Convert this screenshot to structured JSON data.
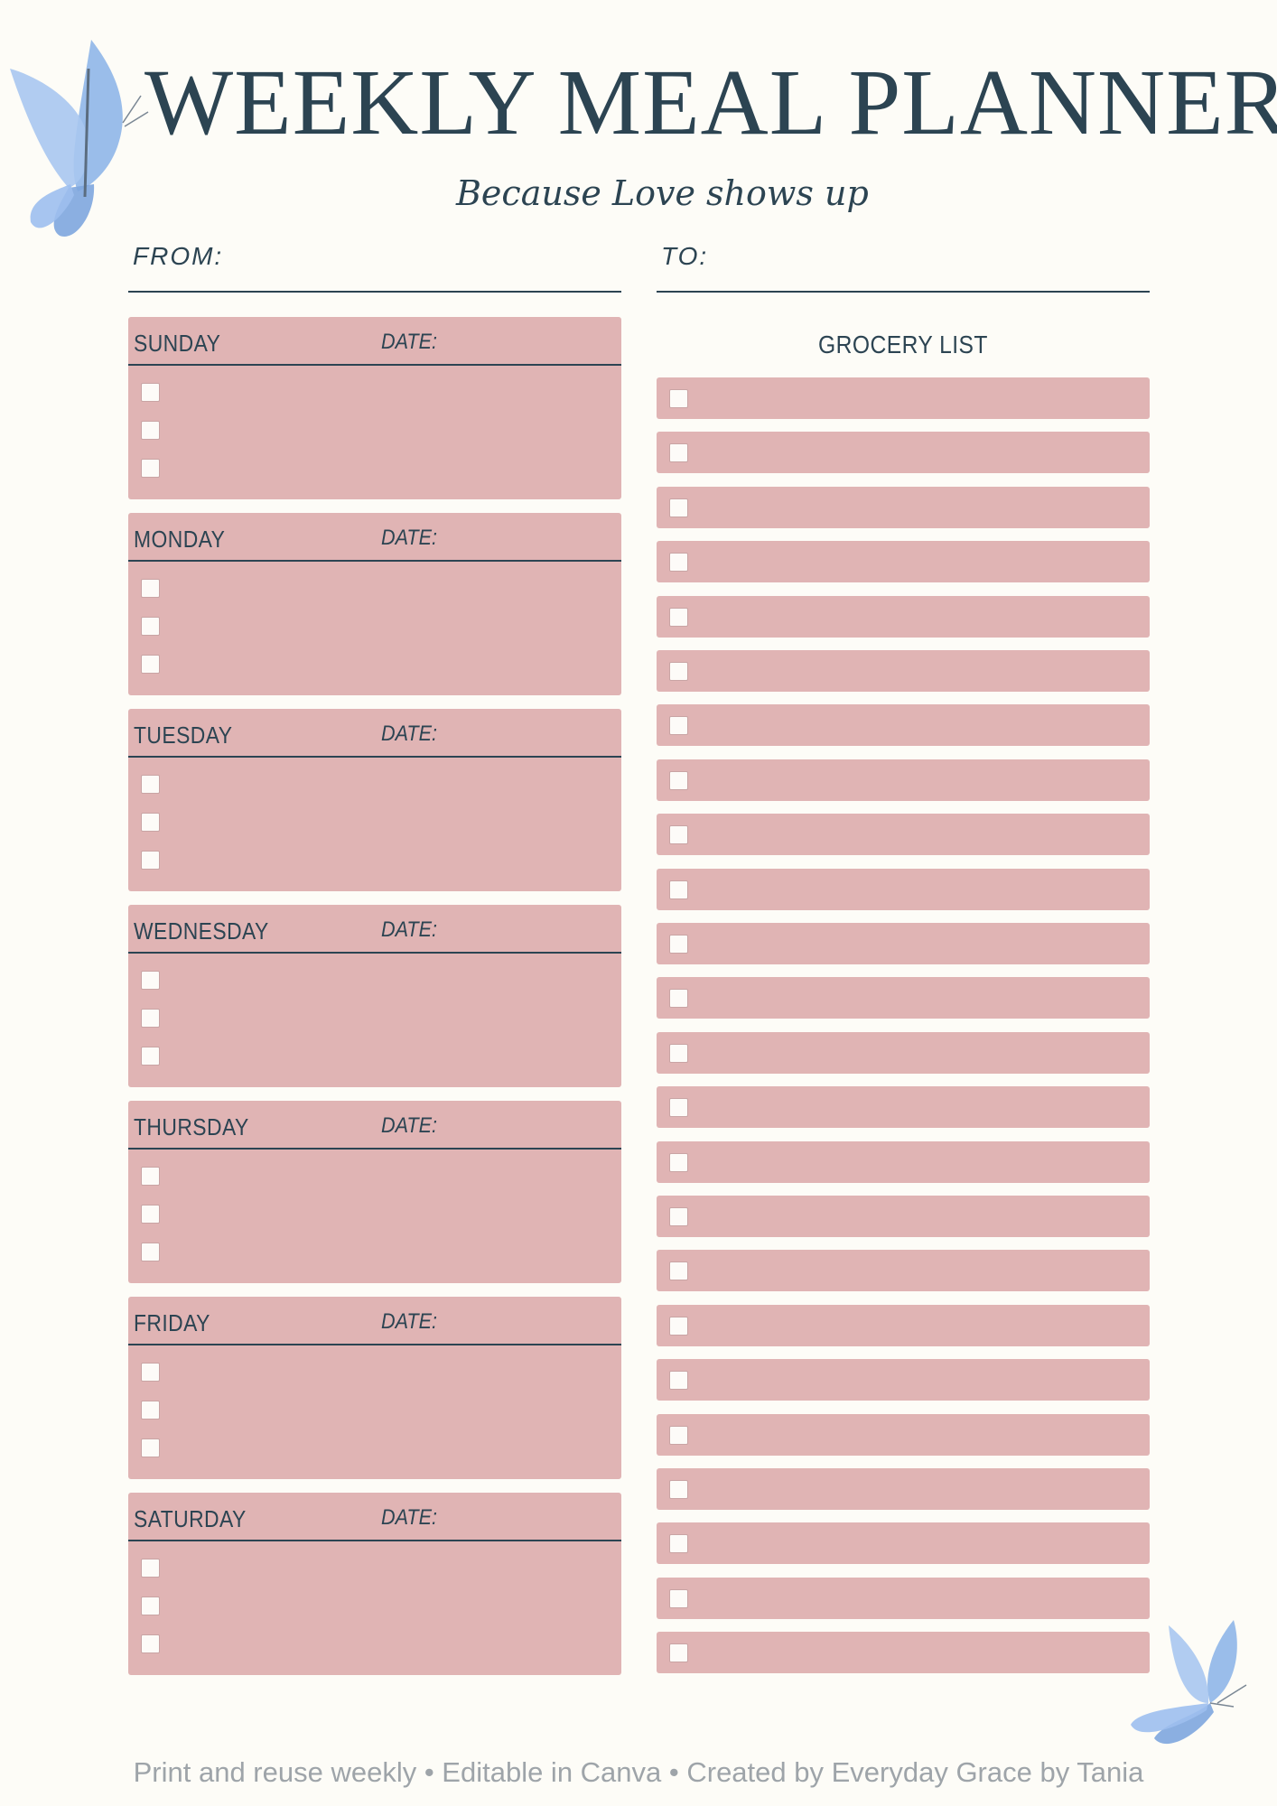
{
  "header": {
    "title": "WEEKLY MEAL PLANNER",
    "subtitle": "Because Love shows up",
    "from_label": "FROM:",
    "to_label": "TO:"
  },
  "days": [
    {
      "name": "SUNDAY",
      "date_label": "DATE:"
    },
    {
      "name": "MONDAY",
      "date_label": "DATE:"
    },
    {
      "name": "TUESDAY",
      "date_label": "DATE:"
    },
    {
      "name": "WEDNESDAY",
      "date_label": "DATE:"
    },
    {
      "name": "THURSDAY",
      "date_label": "DATE:"
    },
    {
      "name": "FRIDAY",
      "date_label": "DATE:"
    },
    {
      "name": "SATURDAY",
      "date_label": "DATE:"
    }
  ],
  "grocery": {
    "title": "GROCERY LIST"
  },
  "footer": {
    "text": "Print and reuse weekly • Editable in Canva • Created by Everyday Grace by Tania"
  },
  "colors": {
    "background": "#fdfcf7",
    "block": "#e0b4b4",
    "text": "#2c4452",
    "butterfly": "#7fa8e0",
    "footer_text": "#9ea4a9"
  },
  "icons": [
    "butterfly-icon",
    "checkbox-icon"
  ]
}
